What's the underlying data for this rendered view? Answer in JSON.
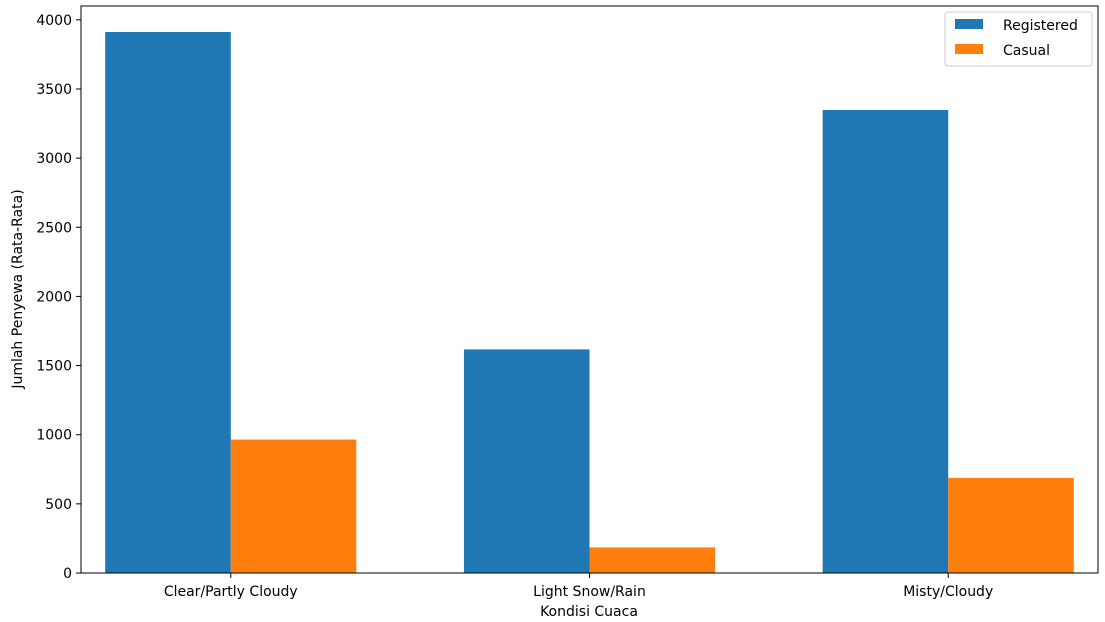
{
  "chart_data": {
    "type": "bar",
    "title": "",
    "xlabel": "Kondisi Cuaca",
    "ylabel": "Jumlah Penyewa (Rata-Rata)",
    "categories": [
      "Clear/Partly Cloudy",
      "Light Snow/Rain",
      "Misty/Cloudy"
    ],
    "series": [
      {
        "name": "Registered",
        "color": "#1f77b4",
        "values": [
          3912,
          1617,
          3348
        ]
      },
      {
        "name": "Casual",
        "color": "#ff7f0e",
        "values": [
          965,
          185,
          688
        ]
      }
    ],
    "ylim": [
      0,
      4100
    ],
    "yticks": [
      0,
      500,
      1000,
      1500,
      2000,
      2500,
      3000,
      3500,
      4000
    ],
    "grid": false,
    "legend_position": "top-right"
  }
}
